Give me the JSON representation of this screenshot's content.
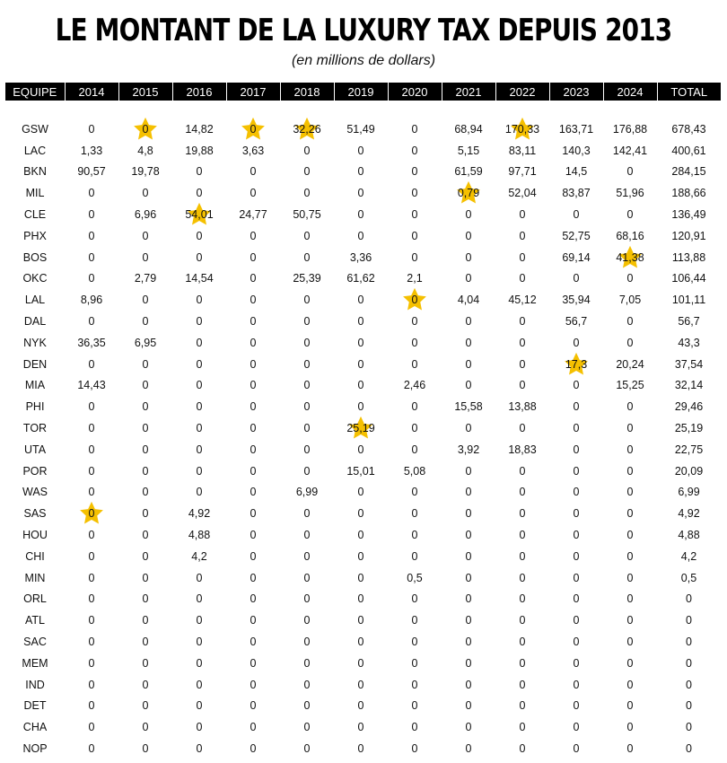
{
  "chart_data": {
    "type": "table",
    "title": "LE MONTANT DE LA LUXURY TAX DEPUIS 2013",
    "subtitle": "(en millions de dollars)",
    "columns": [
      "EQUIPE",
      "2014",
      "2015",
      "2016",
      "2017",
      "2018",
      "2019",
      "2020",
      "2021",
      "2022",
      "2023",
      "2024",
      "TOTAL"
    ],
    "star_color": "#f5c000",
    "rows": [
      {
        "team": "GSW",
        "values": [
          "0",
          "0",
          "14,82",
          "0",
          "32,26",
          "51,49",
          "0",
          "68,94",
          "170,33",
          "163,71",
          "176,88",
          "678,43"
        ],
        "stars": [
          1,
          3,
          4,
          8
        ]
      },
      {
        "team": "LAC",
        "values": [
          "1,33",
          "4,8",
          "19,88",
          "3,63",
          "0",
          "0",
          "0",
          "5,15",
          "83,11",
          "140,3",
          "142,41",
          "400,61"
        ],
        "stars": []
      },
      {
        "team": "BKN",
        "values": [
          "90,57",
          "19,78",
          "0",
          "0",
          "0",
          "0",
          "0",
          "61,59",
          "97,71",
          "14,5",
          "0",
          "284,15"
        ],
        "stars": []
      },
      {
        "team": "MIL",
        "values": [
          "0",
          "0",
          "0",
          "0",
          "0",
          "0",
          "0",
          "0,79",
          "52,04",
          "83,87",
          "51,96",
          "188,66"
        ],
        "stars": [
          7
        ]
      },
      {
        "team": "CLE",
        "values": [
          "0",
          "6,96",
          "54,01",
          "24,77",
          "50,75",
          "0",
          "0",
          "0",
          "0",
          "0",
          "0",
          "136,49"
        ],
        "stars": [
          2
        ]
      },
      {
        "team": "PHX",
        "values": [
          "0",
          "0",
          "0",
          "0",
          "0",
          "0",
          "0",
          "0",
          "0",
          "52,75",
          "68,16",
          "120,91"
        ],
        "stars": []
      },
      {
        "team": "BOS",
        "values": [
          "0",
          "0",
          "0",
          "0",
          "0",
          "3,36",
          "0",
          "0",
          "0",
          "69,14",
          "41,38",
          "113,88"
        ],
        "stars": [
          10
        ]
      },
      {
        "team": "OKC",
        "values": [
          "0",
          "2,79",
          "14,54",
          "0",
          "25,39",
          "61,62",
          "2,1",
          "0",
          "0",
          "0",
          "0",
          "106,44"
        ],
        "stars": []
      },
      {
        "team": "LAL",
        "values": [
          "8,96",
          "0",
          "0",
          "0",
          "0",
          "0",
          "0",
          "4,04",
          "45,12",
          "35,94",
          "7,05",
          "101,11"
        ],
        "stars": [
          6
        ]
      },
      {
        "team": "DAL",
        "values": [
          "0",
          "0",
          "0",
          "0",
          "0",
          "0",
          "0",
          "0",
          "0",
          "56,7",
          "0",
          "56,7"
        ],
        "stars": []
      },
      {
        "team": "NYK",
        "values": [
          "36,35",
          "6,95",
          "0",
          "0",
          "0",
          "0",
          "0",
          "0",
          "0",
          "0",
          "0",
          "43,3"
        ],
        "stars": []
      },
      {
        "team": "DEN",
        "values": [
          "0",
          "0",
          "0",
          "0",
          "0",
          "0",
          "0",
          "0",
          "0",
          "17,3",
          "20,24",
          "37,54"
        ],
        "stars": [
          9
        ]
      },
      {
        "team": "MIA",
        "values": [
          "14,43",
          "0",
          "0",
          "0",
          "0",
          "0",
          "2,46",
          "0",
          "0",
          "0",
          "15,25",
          "32,14"
        ],
        "stars": []
      },
      {
        "team": "PHI",
        "values": [
          "0",
          "0",
          "0",
          "0",
          "0",
          "0",
          "0",
          "15,58",
          "13,88",
          "0",
          "0",
          "29,46"
        ],
        "stars": []
      },
      {
        "team": "TOR",
        "values": [
          "0",
          "0",
          "0",
          "0",
          "0",
          "25,19",
          "0",
          "0",
          "0",
          "0",
          "0",
          "25,19"
        ],
        "stars": [
          5
        ]
      },
      {
        "team": "UTA",
        "values": [
          "0",
          "0",
          "0",
          "0",
          "0",
          "0",
          "0",
          "3,92",
          "18,83",
          "0",
          "0",
          "22,75"
        ],
        "stars": []
      },
      {
        "team": "POR",
        "values": [
          "0",
          "0",
          "0",
          "0",
          "0",
          "15,01",
          "5,08",
          "0",
          "0",
          "0",
          "0",
          "20,09"
        ],
        "stars": []
      },
      {
        "team": "WAS",
        "values": [
          "0",
          "0",
          "0",
          "0",
          "6,99",
          "0",
          "0",
          "0",
          "0",
          "0",
          "0",
          "6,99"
        ],
        "stars": []
      },
      {
        "team": "SAS",
        "values": [
          "0",
          "0",
          "4,92",
          "0",
          "0",
          "0",
          "0",
          "0",
          "0",
          "0",
          "0",
          "4,92"
        ],
        "stars": [
          0
        ]
      },
      {
        "team": "HOU",
        "values": [
          "0",
          "0",
          "4,88",
          "0",
          "0",
          "0",
          "0",
          "0",
          "0",
          "0",
          "0",
          "4,88"
        ],
        "stars": []
      },
      {
        "team": "CHI",
        "values": [
          "0",
          "0",
          "4,2",
          "0",
          "0",
          "0",
          "0",
          "0",
          "0",
          "0",
          "0",
          "4,2"
        ],
        "stars": []
      },
      {
        "team": "MIN",
        "values": [
          "0",
          "0",
          "0",
          "0",
          "0",
          "0",
          "0,5",
          "0",
          "0",
          "0",
          "0",
          "0,5"
        ],
        "stars": []
      },
      {
        "team": "ORL",
        "values": [
          "0",
          "0",
          "0",
          "0",
          "0",
          "0",
          "0",
          "0",
          "0",
          "0",
          "0",
          "0"
        ],
        "stars": []
      },
      {
        "team": "ATL",
        "values": [
          "0",
          "0",
          "0",
          "0",
          "0",
          "0",
          "0",
          "0",
          "0",
          "0",
          "0",
          "0"
        ],
        "stars": []
      },
      {
        "team": "SAC",
        "values": [
          "0",
          "0",
          "0",
          "0",
          "0",
          "0",
          "0",
          "0",
          "0",
          "0",
          "0",
          "0"
        ],
        "stars": []
      },
      {
        "team": "MEM",
        "values": [
          "0",
          "0",
          "0",
          "0",
          "0",
          "0",
          "0",
          "0",
          "0",
          "0",
          "0",
          "0"
        ],
        "stars": []
      },
      {
        "team": "IND",
        "values": [
          "0",
          "0",
          "0",
          "0",
          "0",
          "0",
          "0",
          "0",
          "0",
          "0",
          "0",
          "0"
        ],
        "stars": []
      },
      {
        "team": "DET",
        "values": [
          "0",
          "0",
          "0",
          "0",
          "0",
          "0",
          "0",
          "0",
          "0",
          "0",
          "0",
          "0"
        ],
        "stars": []
      },
      {
        "team": "CHA",
        "values": [
          "0",
          "0",
          "0",
          "0",
          "0",
          "0",
          "0",
          "0",
          "0",
          "0",
          "0",
          "0"
        ],
        "stars": []
      },
      {
        "team": "NOP",
        "values": [
          "0",
          "0",
          "0",
          "0",
          "0",
          "0",
          "0",
          "0",
          "0",
          "0",
          "0",
          "0"
        ],
        "stars": []
      }
    ]
  }
}
